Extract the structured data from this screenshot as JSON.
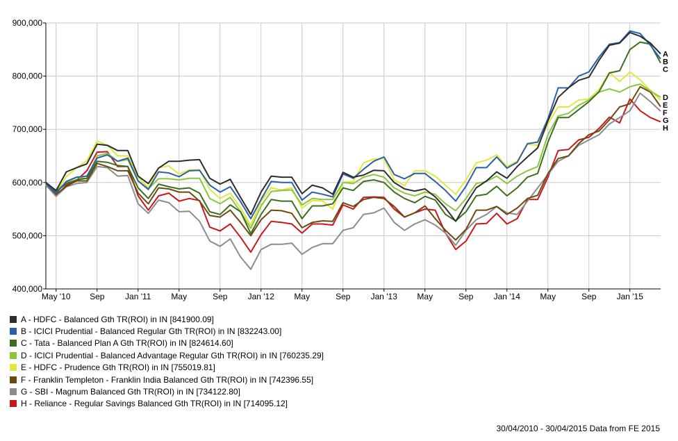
{
  "chart_data": {
    "type": "line",
    "ylim": [
      400000,
      900000
    ],
    "yticks": [
      400000,
      500000,
      600000,
      700000,
      800000,
      900000
    ],
    "ytick_labels": [
      "400,000",
      "500,000",
      "600,000",
      "700,000",
      "800,000",
      "900,000"
    ],
    "xtick_labels": [
      "May '10",
      "Sep",
      "Jan '11",
      "May",
      "Sep",
      "Jan '12",
      "May",
      "Sep",
      "Jan '13",
      "May",
      "Sep",
      "Jan '14",
      "May",
      "Sep",
      "Jan '15"
    ],
    "x_months": [
      "2010-04",
      "2010-05",
      "2010-06",
      "2010-07",
      "2010-08",
      "2010-09",
      "2010-10",
      "2010-11",
      "2010-12",
      "2011-01",
      "2011-02",
      "2011-03",
      "2011-04",
      "2011-05",
      "2011-06",
      "2011-07",
      "2011-08",
      "2011-09",
      "2011-10",
      "2011-11",
      "2011-12",
      "2012-01",
      "2012-02",
      "2012-03",
      "2012-04",
      "2012-05",
      "2012-06",
      "2012-07",
      "2012-08",
      "2012-09",
      "2012-10",
      "2012-11",
      "2012-12",
      "2013-01",
      "2013-02",
      "2013-03",
      "2013-04",
      "2013-05",
      "2013-06",
      "2013-07",
      "2013-08",
      "2013-09",
      "2013-10",
      "2013-11",
      "2013-12",
      "2014-01",
      "2014-02",
      "2014-03",
      "2014-04",
      "2014-05",
      "2014-06",
      "2014-07",
      "2014-08",
      "2014-09",
      "2014-10",
      "2014-11",
      "2014-12",
      "2015-01",
      "2015-02",
      "2015-03",
      "2015-04"
    ],
    "grid": true,
    "legend_position": "bottom-left",
    "series": [
      {
        "label": "A",
        "name": "A - HDFC - Balanced Gth TR(ROI) in IN [841900.09]",
        "color": "#2d2d2d",
        "values": [
          600000,
          585000,
          620000,
          628000,
          635000,
          672000,
          670000,
          660000,
          660000,
          612000,
          598000,
          627000,
          640000,
          640000,
          642000,
          643000,
          608000,
          597000,
          606000,
          572000,
          540000,
          582000,
          612000,
          610000,
          610000,
          579000,
          595000,
          590000,
          578000,
          619000,
          610000,
          614000,
          623000,
          622000,
          600000,
          588000,
          584000,
          588000,
          573000,
          552000,
          527000,
          560000,
          590000,
          603000,
          620000,
          608000,
          630000,
          648000,
          665000,
          716000,
          760000,
          778000,
          792000,
          798000,
          830000,
          858000,
          862000,
          882000,
          875000,
          862000,
          841900
        ]
      },
      {
        "label": "B",
        "name": "B - ICICI Prudential - Balanced Regular Gth TR(ROI) in IN [832243.00]",
        "color": "#2e5ea8",
        "values": [
          598000,
          580000,
          602000,
          610000,
          612000,
          646000,
          652000,
          640000,
          646000,
          603000,
          587000,
          620000,
          618000,
          611000,
          622000,
          623000,
          595000,
          582000,
          592000,
          564000,
          532000,
          568000,
          602000,
          600000,
          600000,
          567000,
          582000,
          578000,
          573000,
          616000,
          608000,
          625000,
          640000,
          648000,
          615000,
          607000,
          617000,
          617000,
          602000,
          585000,
          565000,
          593000,
          628000,
          628000,
          648000,
          627000,
          638000,
          673000,
          676000,
          720000,
          778000,
          778000,
          800000,
          808000,
          836000,
          860000,
          863000,
          885000,
          880000,
          858000,
          832243
        ]
      },
      {
        "label": "C",
        "name": "C - Tata - Balanced Plan A Gth TR(ROI) in IN [824614.60]",
        "color": "#3d6e1f",
        "values": [
          598000,
          583000,
          598000,
          605000,
          608000,
          640000,
          638000,
          632000,
          630000,
          590000,
          570000,
          597000,
          592000,
          588000,
          590000,
          580000,
          545000,
          540000,
          558000,
          545000,
          504000,
          540000,
          568000,
          565000,
          565000,
          532000,
          556000,
          556000,
          560000,
          590000,
          585000,
          602000,
          605000,
          600000,
          582000,
          570000,
          562000,
          574000,
          567000,
          540000,
          528000,
          545000,
          575000,
          578000,
          593000,
          575000,
          590000,
          610000,
          617000,
          676000,
          722000,
          722000,
          737000,
          752000,
          771000,
          806000,
          810000,
          850000,
          864000,
          860000,
          824615
        ]
      },
      {
        "label": "D",
        "name": "D - ICICI Prudential - Balanced Advantage Regular Gth TR(ROI) in IN [760235.29]",
        "color": "#8cc63f",
        "values": [
          597000,
          585000,
          600000,
          610000,
          607000,
          650000,
          655000,
          640000,
          643000,
          603000,
          588000,
          607000,
          607000,
          605000,
          608000,
          608000,
          570000,
          560000,
          572000,
          545000,
          514000,
          556000,
          583000,
          585000,
          586000,
          558000,
          570000,
          568000,
          568000,
          600000,
          598000,
          610000,
          615000,
          610000,
          590000,
          580000,
          575000,
          582000,
          578000,
          560000,
          547000,
          570000,
          598000,
          602000,
          612000,
          598000,
          612000,
          622000,
          630000,
          690000,
          725000,
          730000,
          745000,
          755000,
          770000,
          776000,
          770000,
          780000,
          785000,
          772000,
          760235
        ]
      },
      {
        "label": "E",
        "name": "E - HDFC - Prudence Gth TR(ROI) in IN [755019.81]",
        "color": "#e0e840",
        "values": [
          600000,
          582000,
          611000,
          628000,
          641000,
          678000,
          670000,
          650000,
          650000,
          610000,
          590000,
          628000,
          631000,
          616000,
          624000,
          624000,
          587000,
          570000,
          580000,
          552000,
          520000,
          565000,
          590000,
          586000,
          590000,
          552000,
          566000,
          565000,
          550000,
          600000,
          602000,
          637000,
          644000,
          645000,
          605000,
          594000,
          622000,
          622000,
          612000,
          595000,
          578000,
          605000,
          637000,
          642000,
          652000,
          630000,
          640000,
          672000,
          670000,
          710000,
          742000,
          742000,
          755000,
          757000,
          775000,
          807000,
          790000,
          808000,
          793000,
          773000,
          755020
        ]
      },
      {
        "label": "F",
        "name": "F - Franklin Templeton - Franklin India Balanced Gth TR(ROI) in IN [742396.55]",
        "color": "#6b4a10",
        "values": [
          598000,
          578000,
          593000,
          603000,
          603000,
          636000,
          630000,
          622000,
          622000,
          580000,
          560000,
          590000,
          588000,
          582000,
          582000,
          565000,
          538000,
          535000,
          548000,
          525000,
          500000,
          530000,
          548000,
          547000,
          542000,
          515000,
          525000,
          528000,
          527000,
          562000,
          555000,
          568000,
          572000,
          570000,
          555000,
          535000,
          543000,
          556000,
          532000,
          510000,
          492000,
          512000,
          548000,
          548000,
          555000,
          540000,
          552000,
          570000,
          576000,
          617000,
          645000,
          650000,
          673000,
          690000,
          697000,
          718000,
          742000,
          748000,
          780000,
          770000,
          742397
        ]
      },
      {
        "label": "G",
        "name": "G - SBI - Magnum Balanced Gth TR(ROI) in IN [734122.80]",
        "color": "#8c8c8c",
        "values": [
          595000,
          574000,
          592000,
          598000,
          600000,
          630000,
          628000,
          612000,
          613000,
          560000,
          542000,
          567000,
          562000,
          545000,
          546000,
          527000,
          490000,
          480000,
          494000,
          460000,
          437000,
          474000,
          484000,
          484000,
          486000,
          465000,
          478000,
          485000,
          485000,
          510000,
          515000,
          540000,
          543000,
          552000,
          525000,
          510000,
          522000,
          530000,
          520000,
          505000,
          482000,
          510000,
          530000,
          540000,
          555000,
          543000,
          540000,
          565000,
          590000,
          615000,
          640000,
          650000,
          670000,
          680000,
          690000,
          710000,
          722000,
          735000,
          768000,
          752000,
          734123
        ]
      },
      {
        "label": "H",
        "name": "H - Reliance - Regular Savings Balanced Gth TR(ROI) in IN [714095.12]",
        "color": "#c8181e",
        "values": [
          598000,
          575000,
          595000,
          604000,
          622000,
          657000,
          658000,
          630000,
          630000,
          575000,
          548000,
          575000,
          580000,
          565000,
          570000,
          566000,
          516000,
          509000,
          522000,
          497000,
          469000,
          502000,
          527000,
          525000,
          522000,
          505000,
          522000,
          522000,
          520000,
          558000,
          550000,
          572000,
          573000,
          572000,
          550000,
          535000,
          543000,
          550000,
          548000,
          505000,
          474000,
          490000,
          522000,
          523000,
          542000,
          522000,
          532000,
          568000,
          568000,
          610000,
          660000,
          662000,
          680000,
          685000,
          702000,
          723000,
          712000,
          757000,
          735000,
          722000,
          714095
        ]
      }
    ]
  },
  "footer": {
    "text": "30/04/2010 - 30/04/2015 Data from FE 2015"
  }
}
